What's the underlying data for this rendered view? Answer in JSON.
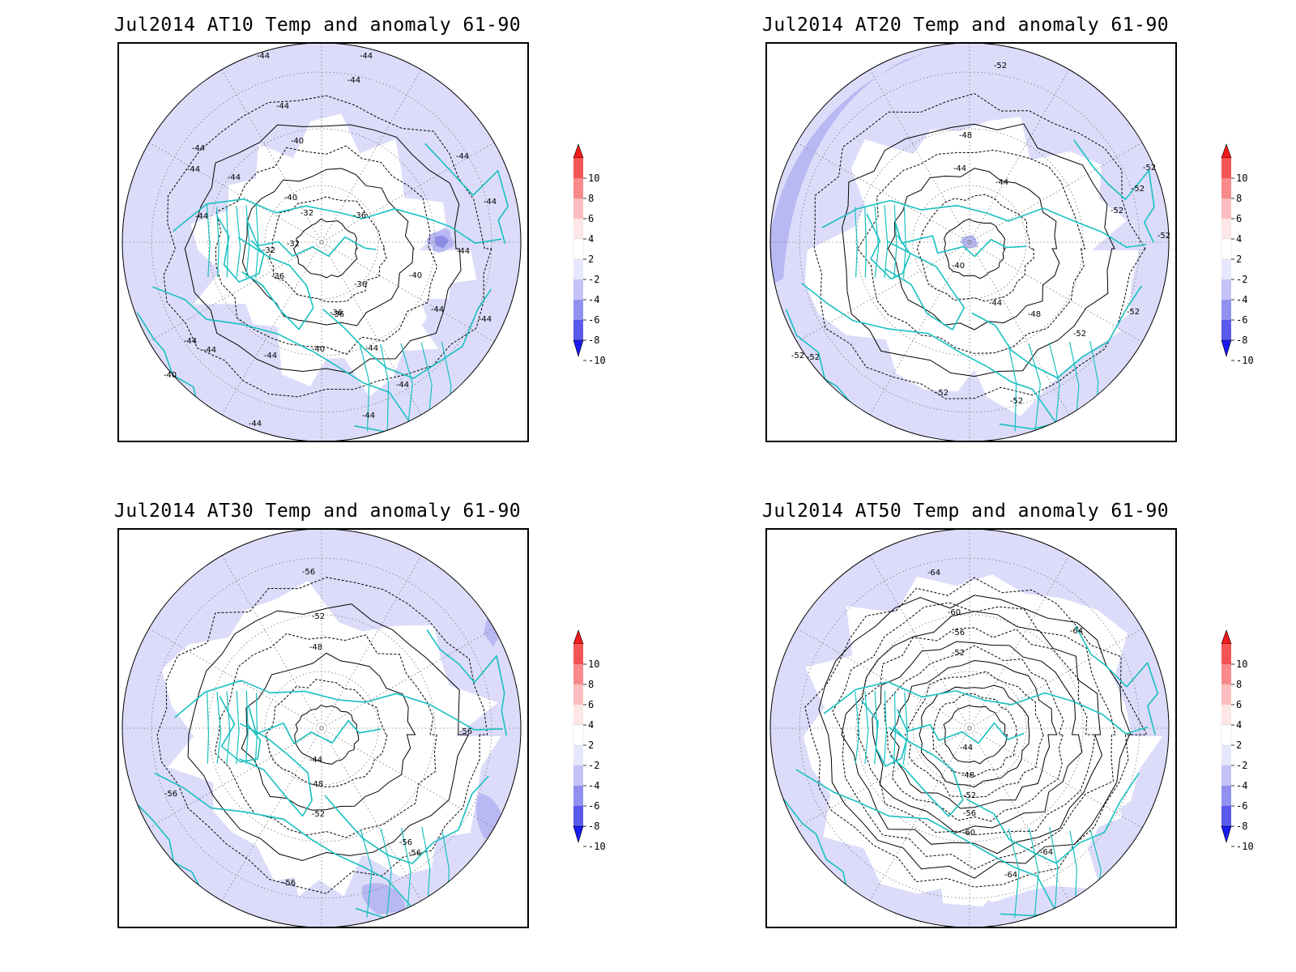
{
  "panels": [
    {
      "title": "Jul2014 AT10 Temp and anomaly 61-90",
      "contours": [
        -44,
        -40,
        -36,
        -32
      ],
      "contour_labels": [
        "-44",
        "-44",
        "-44",
        "-44",
        "-44",
        "-44",
        "-44",
        "-44",
        "-40",
        "-40",
        "-36",
        "-36",
        "-32",
        "-32",
        "-32",
        "-36",
        "-36",
        "-40",
        "-40",
        "-36",
        "-44",
        "-44",
        "-44",
        "-44",
        "-44",
        "-44",
        "-44",
        "-40",
        "-44",
        "-44",
        "-44",
        "-44",
        "-44"
      ]
    },
    {
      "title": "Jul2014 AT20 Temp and anomaly 61-90",
      "contours": [
        -52,
        -48,
        -44,
        -40
      ],
      "contour_labels": [
        "-52",
        "-48",
        "-44",
        "-44",
        "-40",
        "-44",
        "-48",
        "-52",
        "-52",
        "-52",
        "-52",
        "-52",
        "-52",
        "-52",
        "-52",
        "-52",
        "-52"
      ]
    },
    {
      "title": "Jul2014 AT30 Temp and anomaly 61-90",
      "contours": [
        -56,
        -52,
        -48,
        -44
      ],
      "contour_labels": [
        "-56",
        "-52",
        "-48",
        "-44",
        "-48",
        "-52",
        "-56",
        "-56",
        "-56",
        "-56",
        "-56"
      ]
    },
    {
      "title": "Jul2014 AT50 Temp and anomaly 61-90",
      "contours": [
        -64,
        -60,
        -56,
        -52,
        -48,
        -44
      ],
      "contour_labels": [
        "-64",
        "-60",
        "-56",
        "-52",
        "-44",
        "-48",
        "-52",
        "-56",
        "-60",
        "-64",
        "-64",
        "-64"
      ]
    }
  ],
  "colorbar": {
    "labels": [
      "10",
      "8",
      "6",
      "4",
      "2",
      "-2",
      "-4",
      "-6",
      "-8",
      "-10"
    ],
    "colors": [
      "#f21a1a",
      "#f55454",
      "#f88a8a",
      "#fbbdbd",
      "#fde6e6",
      "#ffffff",
      "#e6e6fc",
      "#c3c3f7",
      "#9090ef",
      "#5a5aee",
      "#1a1af2"
    ]
  },
  "colors": {
    "coastline": "#19c0c0",
    "contour": "#000000",
    "grid": "#777777",
    "anom_weak": "#dcdcfa",
    "anom_mid": "#b8b8f2",
    "anom_strong": "#8c8ce8"
  },
  "icons": [
    "map-circle",
    "colorbar-arrow-up",
    "colorbar-arrow-down"
  ]
}
